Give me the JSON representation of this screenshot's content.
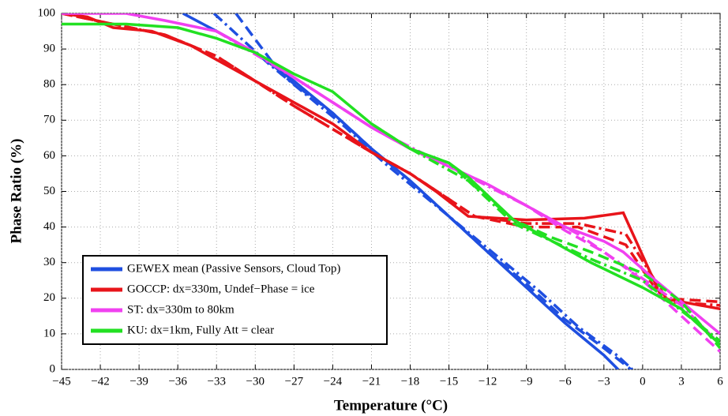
{
  "chart_data": {
    "type": "line",
    "xlabel": "Temperature (°C)",
    "ylabel": "Phase Ratio (%)",
    "xlim": [
      -45,
      6
    ],
    "ylim": [
      0,
      100
    ],
    "xticks": [
      {
        "value": -45,
        "label": "−45"
      },
      {
        "value": -42,
        "label": "−42"
      },
      {
        "value": -39,
        "label": "−39"
      },
      {
        "value": -36,
        "label": "−36"
      },
      {
        "value": -33,
        "label": "−33"
      },
      {
        "value": -30,
        "label": "−30"
      },
      {
        "value": -27,
        "label": "−27"
      },
      {
        "value": -24,
        "label": "−24"
      },
      {
        "value": -21,
        "label": "−21"
      },
      {
        "value": -18,
        "label": "−18"
      },
      {
        "value": -15,
        "label": "−15"
      },
      {
        "value": -12,
        "label": "−12"
      },
      {
        "value": -9,
        "label": "−9"
      },
      {
        "value": -6,
        "label": "−6"
      },
      {
        "value": -3,
        "label": "−3"
      },
      0,
      3,
      6
    ],
    "yticks": [
      0,
      10,
      20,
      30,
      40,
      50,
      60,
      70,
      80,
      90,
      100
    ],
    "grid": true,
    "legend": "lower left",
    "series": [
      {
        "name": "GEWEX mean (Passive Sensors, Cloud Top)",
        "color": "#1f4fe0",
        "style": "solid",
        "x": [
          -35.6,
          -33,
          -30,
          -27,
          -24,
          -21,
          -18,
          -15,
          -12,
          -9,
          -6,
          -3,
          -1.9
        ],
        "values": [
          100,
          95,
          89,
          81,
          72,
          62,
          53,
          43,
          33,
          23,
          13,
          4,
          0
        ]
      },
      {
        "color": "#1f4fe0",
        "style": "dashed",
        "x": [
          -31.5,
          -28,
          -24,
          -21,
          -18,
          -15,
          -12,
          -9,
          -6,
          -3,
          -0.9
        ],
        "values": [
          100,
          83,
          72,
          62,
          53,
          43,
          33,
          24,
          14,
          6,
          0
        ]
      },
      {
        "color": "#1f4fe0",
        "style": "dashdot",
        "x": [
          -33.2,
          -29,
          -26,
          -23,
          -20,
          -17,
          -14,
          -11,
          -8,
          -5,
          -2,
          -0.8
        ],
        "values": [
          100,
          86,
          77,
          68,
          58,
          49,
          40,
          31,
          22,
          12,
          4,
          0
        ]
      },
      {
        "name": "GOCCP: dx=330m, Undef−Phase = ice",
        "color": "#e8141a",
        "style": "solid",
        "x": [
          -45,
          -43,
          -41,
          -38,
          -35,
          -33,
          -30,
          -27,
          -24,
          -21,
          -18,
          -16,
          -13.5,
          -9,
          -4.5,
          -1.5,
          1.5,
          3,
          6
        ],
        "values": [
          100,
          99,
          96,
          95,
          91,
          87,
          81,
          75,
          69,
          61,
          55,
          50,
          43,
          42,
          42.5,
          44,
          20,
          19,
          17
        ]
      },
      {
        "color": "#e8141a",
        "style": "dashed",
        "x": [
          -45,
          -41,
          -37,
          -33,
          -27,
          -21,
          -18,
          -13,
          -9,
          -5,
          -1.3,
          1.5,
          6
        ],
        "values": [
          100,
          97,
          94,
          88,
          74,
          61,
          55,
          43,
          40,
          40,
          35,
          20,
          19
        ]
      },
      {
        "color": "#e8141a",
        "style": "dashdot",
        "x": [
          -45,
          -41,
          -37,
          -33,
          -27,
          -21,
          -18,
          -13,
          -9,
          -5,
          -1.3,
          2,
          6
        ],
        "values": [
          100,
          97,
          94,
          88,
          74,
          61,
          55,
          43,
          41,
          41,
          38,
          19,
          18
        ]
      },
      {
        "name": "ST: dx=330m to 80km",
        "color": "#f040f0",
        "style": "solid",
        "x": [
          -45,
          -40,
          -37,
          -33,
          -30,
          -27,
          -24,
          -21,
          -18,
          -15,
          -12,
          -9,
          -6,
          -3,
          -1.5,
          1,
          3,
          6
        ],
        "values": [
          100,
          100,
          98,
          95,
          89,
          82,
          75,
          68,
          62,
          57,
          52,
          46,
          40,
          36,
          33,
          25,
          19,
          10
        ]
      },
      {
        "color": "#f040f0",
        "style": "dashed",
        "x": [
          -33,
          -30,
          -27,
          -24,
          -21,
          -18,
          -15,
          -12,
          -9,
          -6,
          -3,
          0,
          3,
          6
        ],
        "values": [
          95,
          89,
          82,
          75,
          68,
          62,
          57,
          52,
          46,
          39,
          33,
          25,
          15,
          5
        ]
      },
      {
        "color": "#f040f0",
        "style": "dashdot",
        "x": [
          -33,
          -27,
          -21,
          -15,
          -9,
          -5,
          -1,
          3,
          6
        ],
        "values": [
          95,
          82,
          68,
          57,
          46,
          38,
          28,
          18,
          7
        ]
      },
      {
        "name": "KU: dx=1km, Fully Att = clear",
        "color": "#22e022",
        "style": "solid",
        "x": [
          -45,
          -40,
          -36,
          -33,
          -30,
          -27,
          -24,
          -21,
          -18,
          -15,
          -13.5,
          -10,
          -7,
          -4,
          0,
          3,
          6
        ],
        "values": [
          97,
          97,
          96,
          93,
          89,
          83,
          78,
          69,
          62,
          58,
          54,
          42,
          36,
          30,
          23,
          17,
          7
        ]
      },
      {
        "color": "#22e022",
        "style": "dashed",
        "x": [
          -21,
          -18,
          -15,
          -13.5,
          -10,
          -7,
          -4,
          0,
          3,
          6
        ],
        "values": [
          69,
          62,
          58,
          53,
          42,
          37,
          33,
          27,
          19,
          6
        ]
      },
      {
        "color": "#22e022",
        "style": "dashdot",
        "x": [
          -18,
          -13.5,
          -10,
          -4,
          0,
          6
        ],
        "values": [
          62,
          53,
          41,
          31,
          25,
          8
        ]
      }
    ]
  }
}
